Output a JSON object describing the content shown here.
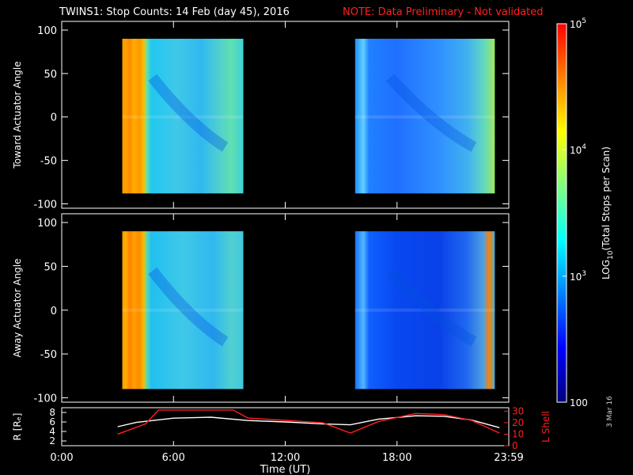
{
  "title": {
    "main": "TWINS1: Stop Counts: 14 Feb (day  45), 2016",
    "note": "NOTE: Data Preliminary - Not validated"
  },
  "date_stamp": "3 Mar 16",
  "chart_data": [
    {
      "type": "heatmap",
      "panel": "toward",
      "ylabel": "Toward Actuator Angle",
      "ylim": [
        -105,
        110
      ],
      "yticks": [
        -100,
        -50,
        0,
        50,
        100
      ],
      "xlim_hours": [
        0,
        24
      ],
      "segments": [
        {
          "start": "3:15",
          "end": "9:45",
          "y_range": [
            -88,
            90
          ]
        },
        {
          "start": "15:45",
          "end": "23:15",
          "y_range": [
            -88,
            90
          ]
        }
      ]
    },
    {
      "type": "heatmap",
      "panel": "away",
      "ylabel": "Away Actuator Angle",
      "ylim": [
        -105,
        110
      ],
      "yticks": [
        -100,
        -50,
        0,
        50,
        100
      ],
      "xlim_hours": [
        0,
        24
      ],
      "segments": [
        {
          "start": "3:15",
          "end": "9:45",
          "y_range": [
            -90,
            90
          ]
        },
        {
          "start": "15:45",
          "end": "23:15",
          "y_range": [
            -90,
            90
          ]
        }
      ]
    },
    {
      "type": "line",
      "panel": "orbit",
      "ylabel_left": "R [Rₑ]",
      "ylabel_right": "L Shell",
      "yticks_left": [
        2,
        4,
        6,
        8
      ],
      "yticks_right": [
        0,
        10,
        20,
        30
      ],
      "xlabel": "Time (UT)",
      "xticks": [
        "0:00",
        "6:00",
        "12:00",
        "18:00",
        "23:59"
      ],
      "series": [
        {
          "axis": "R",
          "color": "#ffffff",
          "x": [
            3,
            4,
            6,
            8,
            10,
            12,
            14,
            15.5,
            17,
            19,
            20.5,
            22,
            23.5
          ],
          "y": [
            5.0,
            5.9,
            6.8,
            7.0,
            6.3,
            6.0,
            5.6,
            5.4,
            6.6,
            7.3,
            7.2,
            6.4,
            4.8
          ]
        },
        {
          "axis": "L",
          "color": "#ff2020",
          "x": [
            3,
            4.5,
            5.2,
            9.2,
            10,
            12,
            14,
            15.5,
            17,
            19,
            20.5,
            22,
            23.5
          ],
          "y": [
            10,
            19,
            31,
            31,
            24,
            22,
            20,
            11,
            21,
            28,
            27,
            22,
            11
          ]
        }
      ]
    }
  ],
  "colorbar": {
    "label": "LOG10(Total Stops per Scan)",
    "ticks": [
      "10^5",
      "10^4",
      "10^3",
      "100"
    ],
    "colors": [
      "#ff0000",
      "#ff8000",
      "#ffff00",
      "#80ff80",
      "#00ffff",
      "#0080ff",
      "#0000ff",
      "#000080"
    ]
  },
  "colors": {
    "note": "#ff2020",
    "r_line": "#ffffff",
    "l_line": "#ff2020"
  }
}
